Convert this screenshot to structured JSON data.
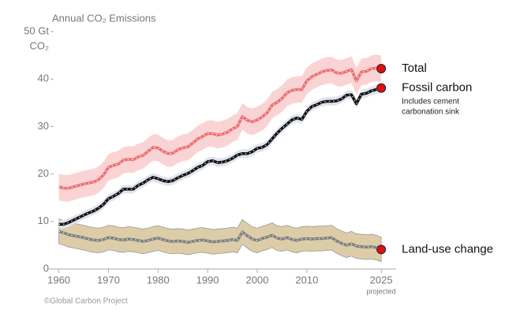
{
  "chart_data": {
    "type": "line",
    "title": "Annual CO₂ Emissions",
    "y_label": "CO₂",
    "x": [
      1960,
      1961,
      1962,
      1963,
      1964,
      1965,
      1966,
      1967,
      1968,
      1969,
      1970,
      1971,
      1972,
      1973,
      1974,
      1975,
      1976,
      1977,
      1978,
      1979,
      1980,
      1981,
      1982,
      1983,
      1984,
      1985,
      1986,
      1987,
      1988,
      1989,
      1990,
      1991,
      1992,
      1993,
      1994,
      1995,
      1996,
      1997,
      1998,
      1999,
      2000,
      2001,
      2002,
      2003,
      2004,
      2005,
      2006,
      2007,
      2008,
      2009,
      2010,
      2011,
      2012,
      2013,
      2014,
      2015,
      2016,
      2017,
      2018,
      2019,
      2020,
      2021,
      2022,
      2023,
      2024,
      2025
    ],
    "series": [
      {
        "name": "Total",
        "color": "#ec6f72",
        "band_color": "#fad4d4",
        "uncertainty": 2.8,
        "values": [
          17.3,
          17.0,
          17.0,
          17.3,
          17.6,
          17.9,
          18.1,
          18.3,
          18.8,
          19.8,
          21.4,
          21.8,
          22.1,
          22.9,
          23.1,
          23.0,
          23.6,
          23.9,
          24.8,
          25.6,
          25.5,
          24.8,
          24.3,
          24.4,
          25.1,
          25.5,
          25.7,
          26.5,
          27.4,
          27.9,
          28.5,
          28.5,
          28.2,
          28.4,
          28.8,
          29.5,
          30.0,
          32.1,
          31.3,
          31.0,
          31.4,
          32.0,
          32.9,
          34.5,
          35.1,
          35.9,
          37.1,
          37.6,
          37.8,
          37.8,
          39.6,
          40.5,
          41.0,
          41.5,
          41.8,
          41.9,
          41.3,
          41.2,
          41.6,
          42.0,
          39.6,
          41.5,
          41.6,
          42.2,
          42.3,
          42.2
        ]
      },
      {
        "name": "Fossil carbon",
        "note": [
          "Includes cement",
          "carbonation sink"
        ],
        "color": "#111111",
        "band_color": "#dfe3ec",
        "uncertainty": 0.9,
        "values": [
          9.4,
          9.4,
          9.8,
          10.3,
          10.8,
          11.3,
          11.8,
          12.2,
          12.8,
          13.6,
          14.8,
          15.3,
          15.9,
          16.8,
          16.8,
          16.8,
          17.6,
          18.1,
          18.8,
          19.3,
          19.0,
          18.6,
          18.4,
          18.6,
          19.2,
          19.7,
          20.1,
          20.7,
          21.4,
          21.8,
          22.6,
          22.8,
          22.4,
          22.5,
          22.8,
          23.3,
          24.0,
          24.3,
          24.3,
          24.7,
          25.4,
          25.6,
          26.2,
          27.4,
          28.6,
          29.6,
          30.5,
          31.4,
          31.8,
          31.5,
          33.2,
          34.2,
          34.6,
          35.1,
          35.3,
          35.3,
          35.4,
          35.8,
          36.6,
          36.7,
          34.8,
          36.8,
          37.0,
          37.5,
          37.8,
          38.1
        ]
      },
      {
        "name": "Land-use change",
        "color": "#808080",
        "band_color": "#dccca8",
        "uncertainty": 2.6,
        "values": [
          7.9,
          7.6,
          7.2,
          7.0,
          6.8,
          6.6,
          6.3,
          6.1,
          6.0,
          6.2,
          6.6,
          6.5,
          6.2,
          6.1,
          6.3,
          6.2,
          6.0,
          5.8,
          6.0,
          6.3,
          6.5,
          6.2,
          5.9,
          5.8,
          5.9,
          5.8,
          5.6,
          5.8,
          6.0,
          6.1,
          5.9,
          5.7,
          5.8,
          5.9,
          6.0,
          6.2,
          6.0,
          7.8,
          7.0,
          6.3,
          6.0,
          6.4,
          6.7,
          7.1,
          6.5,
          6.3,
          6.6,
          6.2,
          6.0,
          6.3,
          6.4,
          6.3,
          6.4,
          6.4,
          6.5,
          6.6,
          5.9,
          5.4,
          5.0,
          5.3,
          4.8,
          4.7,
          4.6,
          4.7,
          4.5,
          4.1
        ]
      }
    ],
    "end_marker_color": "#e01010",
    "xlim": [
      1958,
      2028
    ],
    "xticks": [
      1960,
      1970,
      1980,
      1990,
      2000,
      2010,
      2025
    ],
    "x_note": "projected",
    "ylim": [
      0,
      50
    ],
    "yticks": [
      0,
      10,
      20,
      30,
      40,
      {
        "value": 50,
        "label": "50 Gt"
      }
    ],
    "source": "©Global Carbon Project"
  }
}
